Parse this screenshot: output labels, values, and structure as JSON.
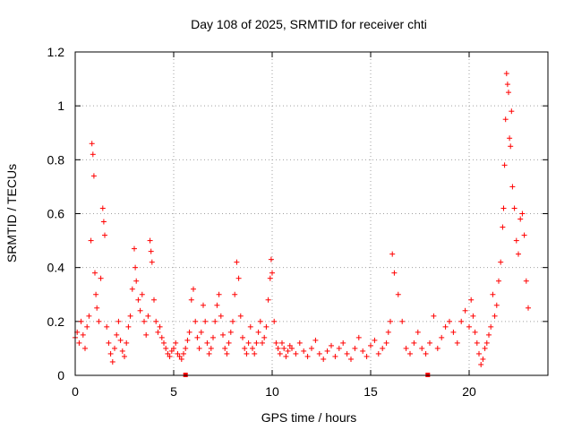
{
  "chart_data": {
    "type": "scatter",
    "title": "Day 108 of 2025, SRMTID for receiver chti",
    "xlabel": "GPS time / hours",
    "ylabel": "SRMTID / TECUs",
    "xlim": [
      0,
      24
    ],
    "ylim": [
      0,
      1.2
    ],
    "xticks": [
      0,
      5,
      10,
      15,
      20
    ],
    "xtick_labels": [
      "0",
      "5",
      "10",
      "15",
      "20"
    ],
    "yticks": [
      0,
      0.2,
      0.4,
      0.6,
      0.8,
      1.0,
      1.2
    ],
    "ytick_labels": [
      "0",
      "0.2",
      "0.4",
      "0.6",
      "0.8",
      "1",
      "1.2"
    ],
    "grid": true,
    "marker": "+",
    "color": "#ff0000",
    "series": [
      {
        "name": "SRMTID",
        "x": [
          0.0,
          0.1,
          0.2,
          0.3,
          0.4,
          0.5,
          0.6,
          0.7,
          0.8,
          0.85,
          0.9,
          0.95,
          1.0,
          1.05,
          1.1,
          1.2,
          1.3,
          1.4,
          1.45,
          1.5,
          1.6,
          1.7,
          1.8,
          1.9,
          2.0,
          2.1,
          2.2,
          2.3,
          2.4,
          2.5,
          2.6,
          2.7,
          2.8,
          2.9,
          3.0,
          3.05,
          3.1,
          3.2,
          3.3,
          3.4,
          3.5,
          3.6,
          3.7,
          3.8,
          3.85,
          3.9,
          4.0,
          4.1,
          4.2,
          4.3,
          4.4,
          4.5,
          4.6,
          4.7,
          4.8,
          4.9,
          5.0,
          5.1,
          5.2,
          5.3,
          5.4,
          5.5,
          5.6,
          5.7,
          5.8,
          5.9,
          6.0,
          6.1,
          6.2,
          6.3,
          6.4,
          6.5,
          6.6,
          6.7,
          6.8,
          6.9,
          7.0,
          7.1,
          7.2,
          7.3,
          7.4,
          7.5,
          7.6,
          7.7,
          7.8,
          7.9,
          8.0,
          8.1,
          8.2,
          8.3,
          8.4,
          8.5,
          8.6,
          8.7,
          8.8,
          8.9,
          9.0,
          9.1,
          9.2,
          9.3,
          9.4,
          9.5,
          9.6,
          9.7,
          9.8,
          9.9,
          9.95,
          10.0,
          10.1,
          10.2,
          10.3,
          10.4,
          10.5,
          10.6,
          10.7,
          10.8,
          10.9,
          11.0,
          11.2,
          11.4,
          11.6,
          11.8,
          12.0,
          12.2,
          12.4,
          12.6,
          12.8,
          13.0,
          13.2,
          13.4,
          13.6,
          13.8,
          14.0,
          14.2,
          14.4,
          14.6,
          14.8,
          15.0,
          15.2,
          15.4,
          15.6,
          15.8,
          15.9,
          16.0,
          16.1,
          16.2,
          16.4,
          16.6,
          16.8,
          17.0,
          17.2,
          17.4,
          17.6,
          17.8,
          18.0,
          18.2,
          18.4,
          18.6,
          18.8,
          19.0,
          19.2,
          19.4,
          19.6,
          19.8,
          20.0,
          20.1,
          20.2,
          20.3,
          20.4,
          20.5,
          20.6,
          20.7,
          20.8,
          20.9,
          21.0,
          21.1,
          21.2,
          21.3,
          21.4,
          21.5,
          21.6,
          21.7,
          21.75,
          21.8,
          21.85,
          21.9,
          21.95,
          22.0,
          22.05,
          22.1,
          22.15,
          22.2,
          22.3,
          22.4,
          22.5,
          22.6,
          22.7,
          22.8,
          22.9,
          23.0
        ],
        "y": [
          0.14,
          0.16,
          0.12,
          0.2,
          0.15,
          0.1,
          0.18,
          0.22,
          0.5,
          0.86,
          0.82,
          0.74,
          0.38,
          0.3,
          0.25,
          0.2,
          0.36,
          0.62,
          0.57,
          0.52,
          0.18,
          0.12,
          0.08,
          0.05,
          0.1,
          0.15,
          0.2,
          0.13,
          0.09,
          0.07,
          0.12,
          0.18,
          0.22,
          0.32,
          0.47,
          0.4,
          0.35,
          0.28,
          0.24,
          0.3,
          0.2,
          0.15,
          0.22,
          0.5,
          0.46,
          0.42,
          0.28,
          0.2,
          0.16,
          0.18,
          0.14,
          0.12,
          0.1,
          0.08,
          0.07,
          0.09,
          0.1,
          0.12,
          0.08,
          0.07,
          0.06,
          0.08,
          0.1,
          0.13,
          0.16,
          0.28,
          0.32,
          0.2,
          0.14,
          0.1,
          0.16,
          0.26,
          0.2,
          0.12,
          0.08,
          0.1,
          0.14,
          0.2,
          0.26,
          0.3,
          0.22,
          0.15,
          0.1,
          0.08,
          0.12,
          0.16,
          0.2,
          0.3,
          0.42,
          0.36,
          0.22,
          0.14,
          0.1,
          0.08,
          0.12,
          0.18,
          0.1,
          0.08,
          0.12,
          0.16,
          0.2,
          0.12,
          0.14,
          0.18,
          0.28,
          0.36,
          0.43,
          0.38,
          0.2,
          0.12,
          0.1,
          0.08,
          0.12,
          0.1,
          0.07,
          0.09,
          0.11,
          0.1,
          0.08,
          0.12,
          0.09,
          0.07,
          0.1,
          0.13,
          0.08,
          0.06,
          0.09,
          0.11,
          0.07,
          0.1,
          0.12,
          0.08,
          0.06,
          0.1,
          0.14,
          0.09,
          0.07,
          0.11,
          0.13,
          0.08,
          0.1,
          0.12,
          0.16,
          0.2,
          0.45,
          0.38,
          0.3,
          0.2,
          0.1,
          0.08,
          0.12,
          0.16,
          0.1,
          0.08,
          0.12,
          0.22,
          0.1,
          0.14,
          0.18,
          0.2,
          0.16,
          0.12,
          0.2,
          0.24,
          0.18,
          0.28,
          0.22,
          0.16,
          0.12,
          0.08,
          0.04,
          0.06,
          0.1,
          0.12,
          0.15,
          0.18,
          0.3,
          0.22,
          0.26,
          0.35,
          0.42,
          0.55,
          0.62,
          0.78,
          0.95,
          1.12,
          1.08,
          1.05,
          0.88,
          0.85,
          0.98,
          0.7,
          0.62,
          0.5,
          0.45,
          0.58,
          0.6,
          0.52,
          0.35,
          0.25
        ],
        "special_points_x": [
          5.6,
          17.9
        ],
        "special_points_y": [
          0,
          0
        ]
      }
    ]
  }
}
